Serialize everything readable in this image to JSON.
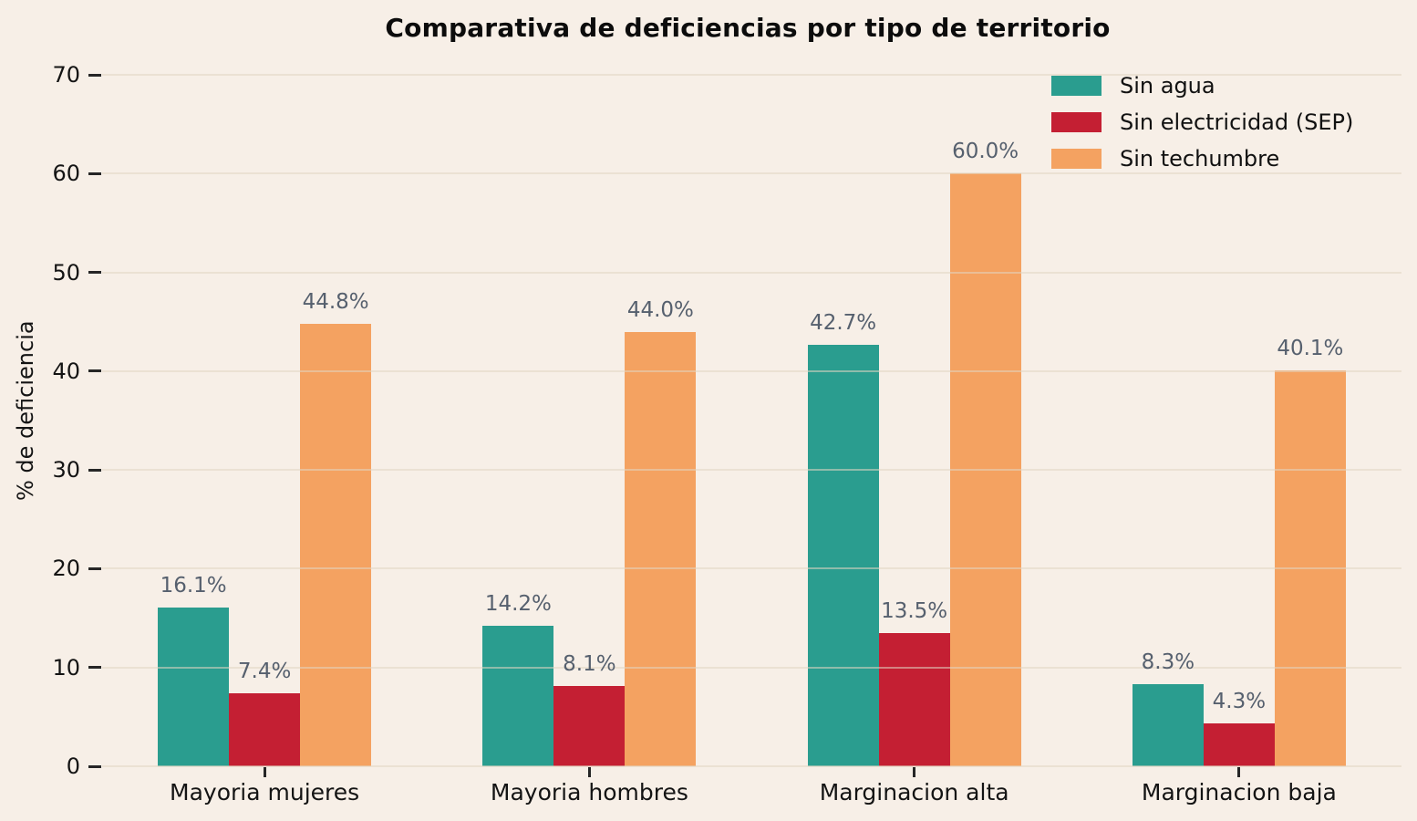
{
  "chart_data": {
    "type": "bar",
    "title": "Comparativa de deficiencias por tipo de territorio",
    "ylabel": "% de deficiencia",
    "categories": [
      "Mayoria mujeres",
      "Mayoria hombres",
      "Marginacion alta",
      "Marginacion baja"
    ],
    "series": [
      {
        "name": "Sin agua",
        "color": "#2a9d8f",
        "values": [
          16.1,
          14.2,
          42.7,
          8.3
        ]
      },
      {
        "name": "Sin electricidad (SEP)",
        "color": "#c41f33",
        "values": [
          7.4,
          8.1,
          13.5,
          4.3
        ]
      },
      {
        "name": "Sin techumbre",
        "color": "#f4a261",
        "values": [
          44.8,
          44.0,
          60.0,
          40.1
        ]
      }
    ],
    "value_label_suffix": "%",
    "value_label_decimals": 1,
    "ylim": [
      0,
      70
    ],
    "yticks": [
      0,
      10,
      20,
      30,
      40,
      50,
      60,
      70
    ],
    "grid": true,
    "legend_position": "upper right"
  },
  "style": {
    "background": "#f7efe7",
    "grid_color": "#e2d5c3",
    "tick_color": "#262626",
    "value_label_color": "#56606e",
    "text_color": "#141414"
  }
}
